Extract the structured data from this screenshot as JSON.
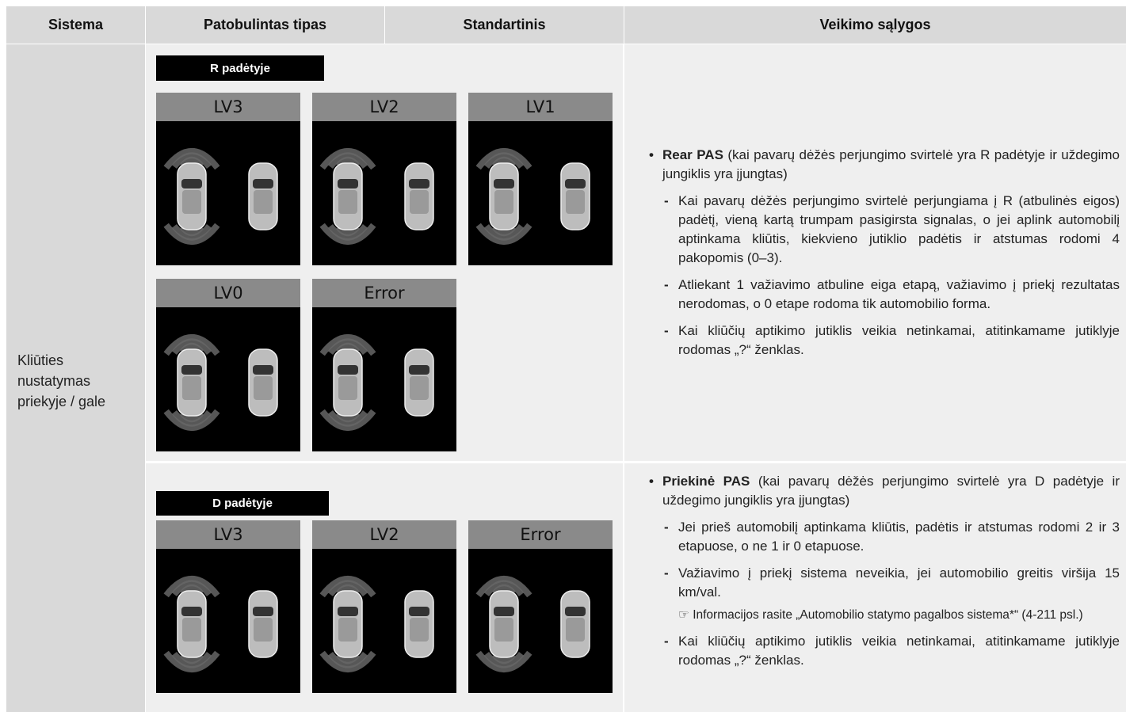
{
  "header": [
    "Sistema",
    "Patobulintas tipas",
    "Standartinis",
    "Veikimo sąlygos"
  ],
  "row_label": [
    "Kliūties",
    "nustatymas",
    "priekyje / gale"
  ],
  "sections": [
    {
      "badge": "R padėtyje",
      "panels": [
        "LV3",
        "LV2",
        "LV1",
        "LV0",
        "Error"
      ],
      "conditions": {
        "title": "Rear PAS",
        "text": "(kai pavarų dėžės perjungimo svirtelė yra R padėtyje ir uždegimo jungiklis yra įjungtas)",
        "items": [
          {
            "text": "Kai pavarų dėžės perjungimo svirtelė perjungiama į R (atbulinės eigos) padėtį, vieną kartą trumpam pasigirsta signalas, o jei aplink automobilį aptinkama kliūtis, kiekvieno jutiklio padėtis ir atstumas rodomi 4 pakopomis (0–3)."
          },
          {
            "text": "Atliekant 1 važiavimo atbuline eiga etapą, važiavimo į priekį rezultatas nerodomas, o 0 etape rodoma tik automobilio forma."
          },
          {
            "text": "Kai kliūčių aptikimo jutiklis veikia netinkamai, atitinkamame jutiklyje rodomas „?“ ženklas."
          }
        ]
      }
    },
    {
      "badge": "D padėtyje",
      "panels": [
        "LV3",
        "LV2",
        "Error"
      ],
      "conditions": {
        "title": "Priekinė PAS",
        "text": "(kai pavarų dėžės perjungimo svirtelė yra D padėtyje ir uždegimo jungiklis yra įjungtas)",
        "items": [
          {
            "text": "Jei prieš automobilį aptinkama kliūtis, padėtis ir atstumas rodomi 2 ir 3 etapuose, o ne 1 ir 0 etapuose."
          },
          {
            "text": "Važiavimo į priekį sistema neveikia, jei automobilio greitis viršija 15 km/val.",
            "note": "☞ Informacijos rasite „Automobilio statymo pagalbos sistema*“ (4-211 psl.)"
          },
          {
            "text": "Kai kliūčių aptikimo jutiklis veikia netinkamai, atitinkamame jutiklyje rodomas „?“ ženklas."
          }
        ]
      }
    }
  ]
}
